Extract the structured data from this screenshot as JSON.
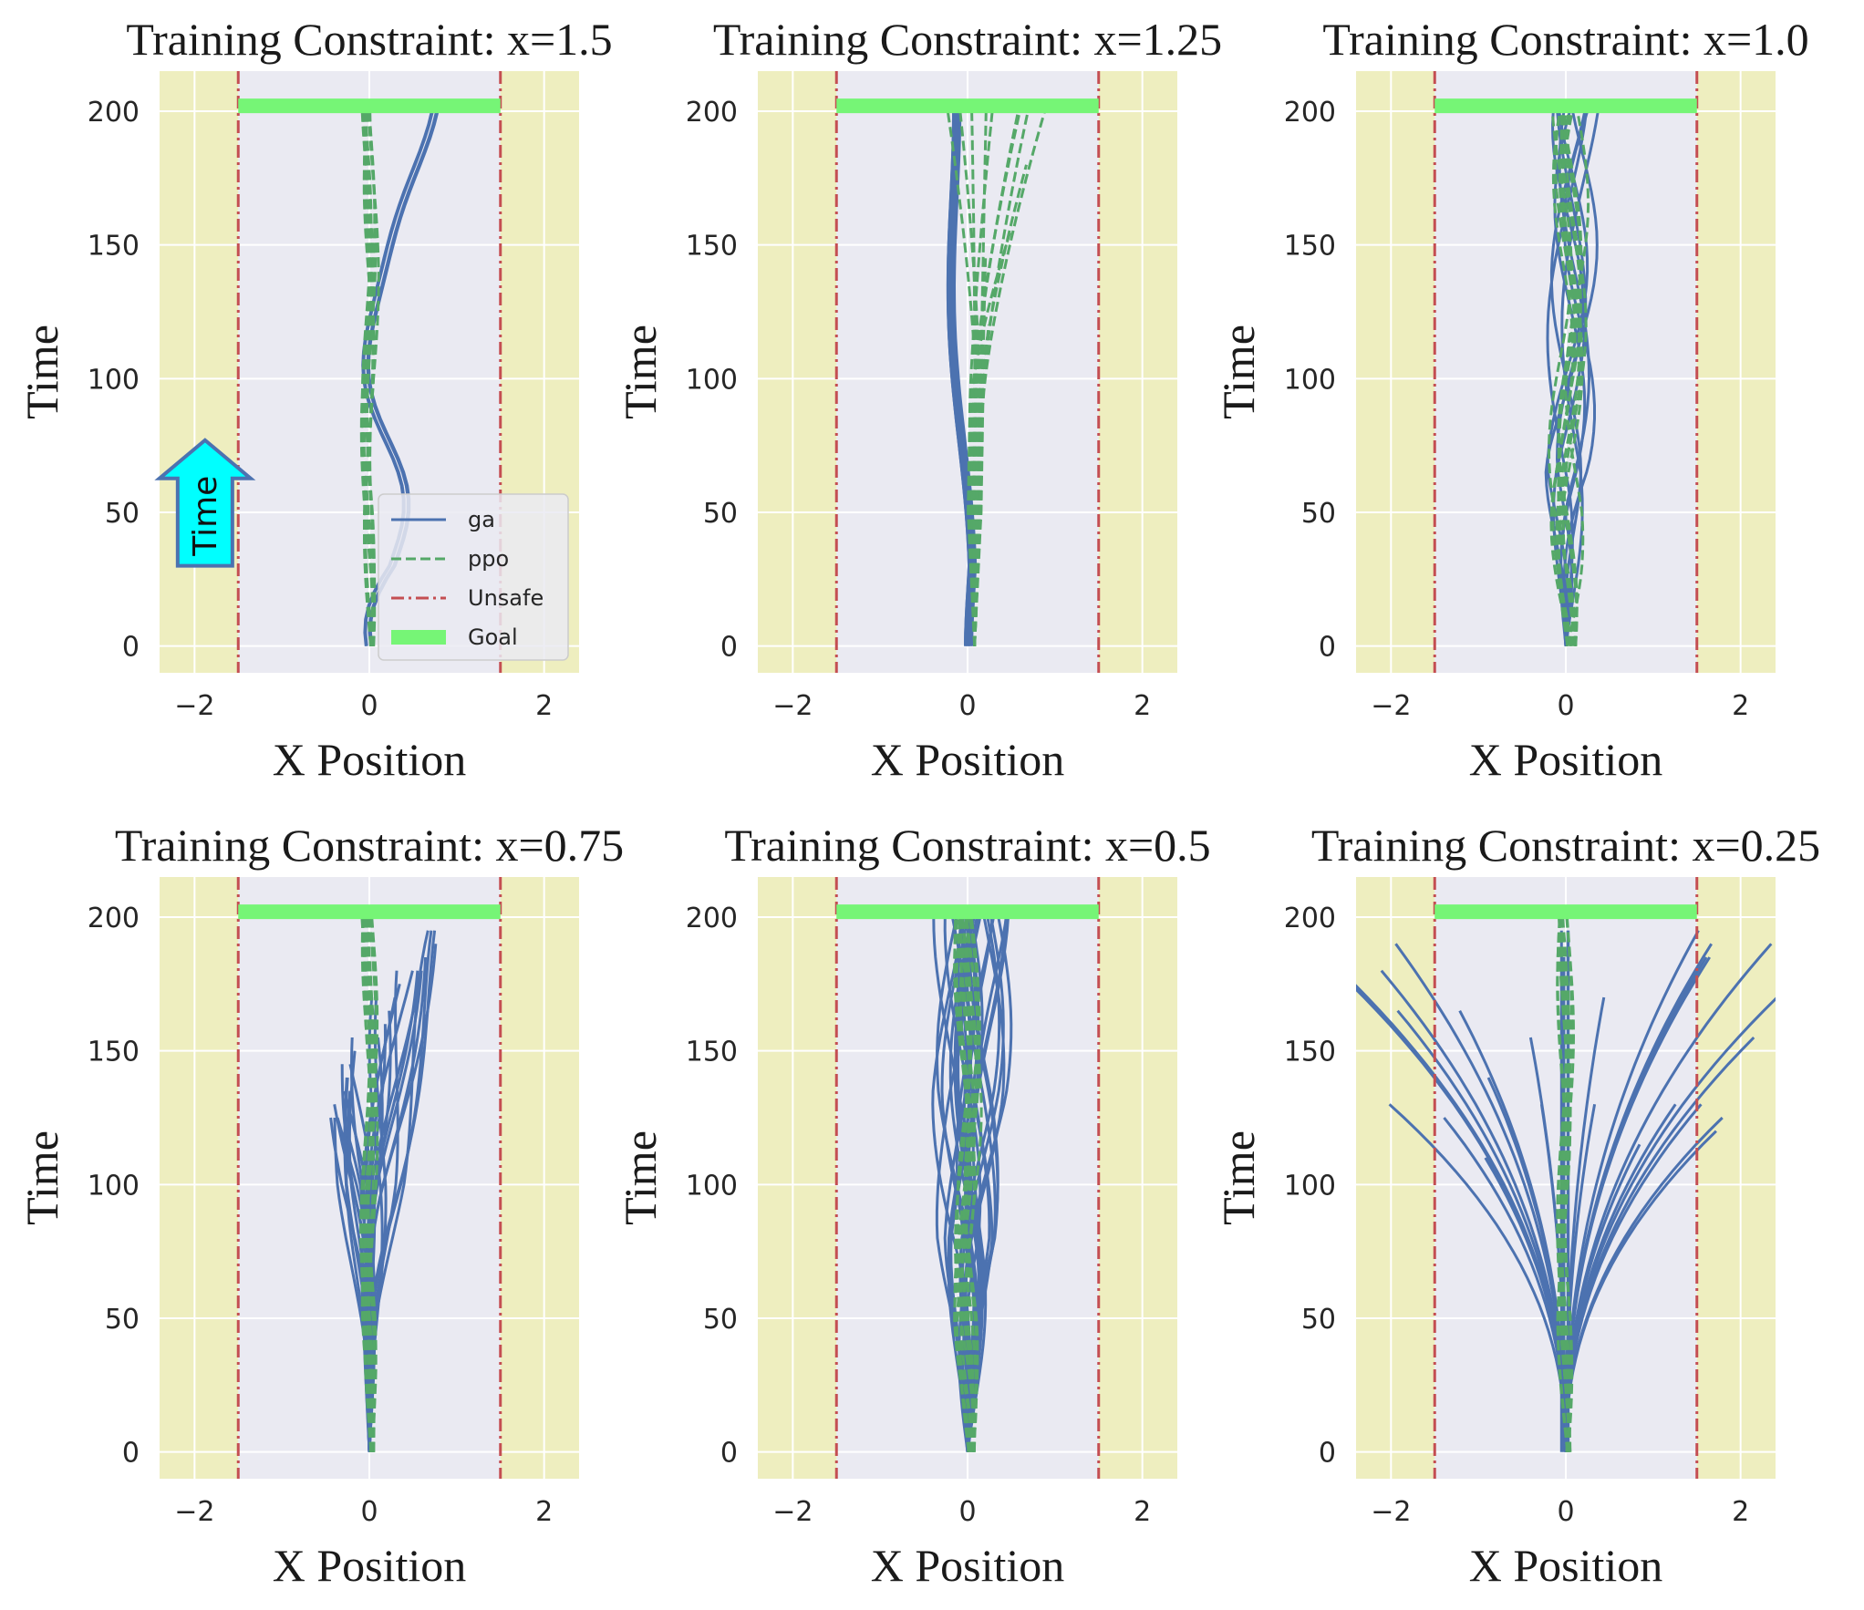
{
  "figure": {
    "colors": {
      "safe_bg": "#eaeaf2",
      "unsafe_bg": "#eeeebf",
      "ga": "#4c72b0",
      "ppo": "#55a868",
      "unsafe_line": "#c44e52",
      "goal": "#76f576",
      "arrow_fill": "#00ffff",
      "arrow_edge": "#4c72b0"
    },
    "time_arrow": {
      "label": "Time",
      "icon": "up-arrow-icon"
    },
    "legend": {
      "placement": "lower-right of first panel",
      "entries": [
        {
          "label": "ga",
          "style": "solid",
          "color": "#4c72b0"
        },
        {
          "label": "ppo",
          "style": "dashed",
          "color": "#55a868"
        },
        {
          "label": "Unsafe",
          "style": "dashdot",
          "color": "#c44e52"
        },
        {
          "label": "Goal",
          "style": "thick",
          "color": "#76f576"
        }
      ]
    }
  },
  "chart_data": [
    {
      "type": "line",
      "title": "Training Constraint: x=1.5",
      "constraint": 1.5,
      "xlabel": "X Position",
      "ylabel": "Time",
      "xlim": [
        -2.4,
        2.4
      ],
      "ylim": [
        -10,
        215
      ],
      "xticks": [
        "−2",
        "0",
        "2"
      ],
      "xtick_values": [
        -2,
        0,
        2
      ],
      "yticks": [
        "0",
        "50",
        "100",
        "150",
        "200"
      ],
      "ytick_values": [
        0,
        50,
        100,
        150,
        200
      ],
      "unsafe_x": [
        -1.5,
        1.5
      ],
      "goal": {
        "x": [
          -1.5,
          1.5
        ],
        "y": 202
      },
      "series": [
        {
          "name": "ga",
          "pattern": "narrow-weave",
          "count": 6,
          "spread": 0.05,
          "drift": 0.3,
          "amp": 0.28
        },
        {
          "name": "ppo",
          "pattern": "tight-band",
          "count": 10,
          "spread": 0.06,
          "drift": 0.0,
          "amp": 0.05
        }
      ]
    },
    {
      "type": "line",
      "title": "Training Constraint: x=1.25",
      "constraint": 1.25,
      "xlabel": "X Position",
      "ylabel": "Time",
      "xlim": [
        -2.4,
        2.4
      ],
      "ylim": [
        -10,
        215
      ],
      "xticks": [
        "−2",
        "0",
        "2"
      ],
      "xtick_values": [
        -2,
        0,
        2
      ],
      "yticks": [
        "0",
        "50",
        "100",
        "150",
        "200"
      ],
      "ytick_values": [
        0,
        50,
        100,
        150,
        200
      ],
      "unsafe_x": [
        -1.5,
        1.5
      ],
      "goal": {
        "x": [
          -1.5,
          1.5
        ],
        "y": 202
      },
      "series": [
        {
          "name": "ga",
          "pattern": "narrow-weave",
          "count": 8,
          "spread": 0.06,
          "drift": -0.2,
          "amp": 0.12
        },
        {
          "name": "ppo",
          "pattern": "upper-scatter",
          "count": 16,
          "spread": 0.12,
          "drift": 0.1,
          "amp": 0.6
        }
      ]
    },
    {
      "type": "line",
      "title": "Training Constraint: x=1.0",
      "constraint": 1.0,
      "xlabel": "X Position",
      "ylabel": "Time",
      "xlim": [
        -2.4,
        2.4
      ],
      "ylim": [
        -10,
        215
      ],
      "xticks": [
        "−2",
        "0",
        "2"
      ],
      "xtick_values": [
        -2,
        0,
        2
      ],
      "yticks": [
        "0",
        "50",
        "100",
        "150",
        "200"
      ],
      "ytick_values": [
        0,
        50,
        100,
        150,
        200
      ],
      "unsafe_x": [
        -1.5,
        1.5
      ],
      "goal": {
        "x": [
          -1.5,
          1.5
        ],
        "y": 202
      },
      "series": [
        {
          "name": "ga",
          "pattern": "braided",
          "count": 10,
          "spread": 0.12,
          "drift": 0.15,
          "amp": 0.2
        },
        {
          "name": "ppo",
          "pattern": "tight-band",
          "count": 12,
          "spread": 0.1,
          "drift": 0.05,
          "amp": 0.12
        }
      ]
    },
    {
      "type": "line",
      "title": "Training Constraint: x=0.75",
      "constraint": 0.75,
      "xlabel": "X Position",
      "ylabel": "Time",
      "xlim": [
        -2.4,
        2.4
      ],
      "ylim": [
        -10,
        215
      ],
      "xticks": [
        "−2",
        "0",
        "2"
      ],
      "xtick_values": [
        -2,
        0,
        2
      ],
      "yticks": [
        "0",
        "50",
        "100",
        "150",
        "200"
      ],
      "ytick_values": [
        0,
        50,
        100,
        150,
        200
      ],
      "unsafe_x": [
        -1.5,
        1.5
      ],
      "goal": {
        "x": [
          -1.5,
          1.5
        ],
        "y": 202
      },
      "series": [
        {
          "name": "ga",
          "pattern": "bushy-fan",
          "count": 30,
          "spread": 0.9,
          "drift": 0.0,
          "amp": 0.15
        },
        {
          "name": "ppo",
          "pattern": "tight-band",
          "count": 12,
          "spread": 0.05,
          "drift": 0.0,
          "amp": 0.05
        }
      ]
    },
    {
      "type": "line",
      "title": "Training Constraint: x=0.5",
      "constraint": 0.5,
      "xlabel": "X Position",
      "ylabel": "Time",
      "xlim": [
        -2.4,
        2.4
      ],
      "ylim": [
        -10,
        215
      ],
      "xticks": [
        "−2",
        "0",
        "2"
      ],
      "xtick_values": [
        -2,
        0,
        2
      ],
      "yticks": [
        "0",
        "50",
        "100",
        "150",
        "200"
      ],
      "ytick_values": [
        0,
        50,
        100,
        150,
        200
      ],
      "unsafe_x": [
        -1.5,
        1.5
      ],
      "goal": {
        "x": [
          -1.5,
          1.5
        ],
        "y": 202
      },
      "series": [
        {
          "name": "ga",
          "pattern": "wide-band",
          "count": 30,
          "spread": 0.28,
          "drift": 0.05,
          "amp": 0.2
        },
        {
          "name": "ppo",
          "pattern": "tight-band",
          "count": 14,
          "spread": 0.1,
          "drift": 0.0,
          "amp": 0.08
        }
      ]
    },
    {
      "type": "line",
      "title": "Training Constraint: x=0.25",
      "constraint": 0.25,
      "xlabel": "X Position",
      "ylabel": "Time",
      "xlim": [
        -2.4,
        2.4
      ],
      "ylim": [
        -10,
        215
      ],
      "xticks": [
        "−2",
        "0",
        "2"
      ],
      "xtick_values": [
        -2,
        0,
        2
      ],
      "yticks": [
        "0",
        "50",
        "100",
        "150",
        "200"
      ],
      "ytick_values": [
        0,
        50,
        100,
        150,
        200
      ],
      "unsafe_x": [
        -1.5,
        1.5
      ],
      "goal": {
        "x": [
          -1.5,
          1.5
        ],
        "y": 202
      },
      "series": [
        {
          "name": "ga",
          "pattern": "diverging",
          "count": 30,
          "spread": 2.6,
          "drift": 0.0,
          "amp": 0.0
        },
        {
          "name": "ppo",
          "pattern": "tight-band",
          "count": 10,
          "spread": 0.05,
          "drift": 0.0,
          "amp": 0.05
        }
      ]
    }
  ]
}
